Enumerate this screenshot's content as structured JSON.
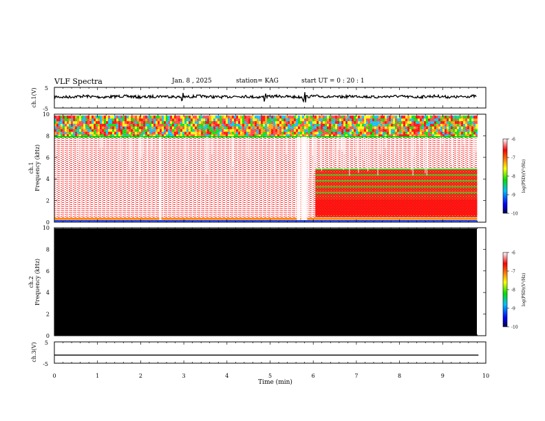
{
  "header": {
    "title": "VLF Spectra",
    "date": "Jan. 8 , 2025",
    "station": "station= KAG",
    "start": "start  UT =   0 : 20 : 1"
  },
  "chart_data": [
    {
      "type": "line",
      "panel": "ch1",
      "ylabel": "ch.1(V)",
      "ylim": [
        -5,
        5
      ],
      "yticks": [
        "5",
        "-5"
      ],
      "xlim": [
        0,
        10
      ],
      "trace": "noisy waveform centred slightly below 0 V with spikes near 2.9, 4.9 and 5.8 min",
      "color": "#000000"
    },
    {
      "type": "heatmap",
      "panel": "ch1-spectrogram",
      "ylabel": "ch.1\nFrequency (kHz)",
      "ylim": [
        0,
        10
      ],
      "yticks": [
        "0",
        "2",
        "4",
        "6",
        "8",
        "10"
      ],
      "xlim": [
        0,
        10
      ],
      "colorbar": {
        "label": "log(PSD)(V²/Hz)",
        "range": [
          -10,
          -6
        ],
        "ticks": [
          "-6",
          "-7",
          "-8",
          "-9",
          "-10"
        ]
      },
      "features": {
        "band_top_khz": [
          8.0,
          10.0
        ],
        "regime_change_min": 6.0,
        "gap_min": [
          5.6,
          6.0
        ],
        "vertical_gap_min": 2.45
      }
    },
    {
      "type": "heatmap",
      "panel": "ch2-spectrogram",
      "ylabel": "ch.2\nFrequency (kHz)",
      "ylim": [
        0,
        10
      ],
      "yticks": [
        "0",
        "2",
        "4",
        "6",
        "8",
        "10"
      ],
      "xlim": [
        0,
        10
      ],
      "fill": "#000000",
      "colorbar": {
        "label": "log(PSD)(V²/Hz)",
        "range": [
          -10,
          -6
        ],
        "ticks": [
          "-6",
          "-7",
          "-8",
          "-9",
          "-10"
        ]
      }
    },
    {
      "type": "line",
      "panel": "ch3",
      "ylabel": "ch.3(V)",
      "ylim": [
        -5,
        5
      ],
      "yticks": [
        "5",
        "-5"
      ],
      "xlim": [
        0,
        10
      ],
      "values": [
        [
          0,
          -1.2
        ],
        [
          9.83,
          -1.2
        ]
      ],
      "color": "#000000"
    }
  ],
  "xaxis": {
    "label": "Time  (min)",
    "ticks": [
      "0",
      "1",
      "2",
      "3",
      "4",
      "5",
      "6",
      "7",
      "8",
      "9",
      "10"
    ]
  }
}
